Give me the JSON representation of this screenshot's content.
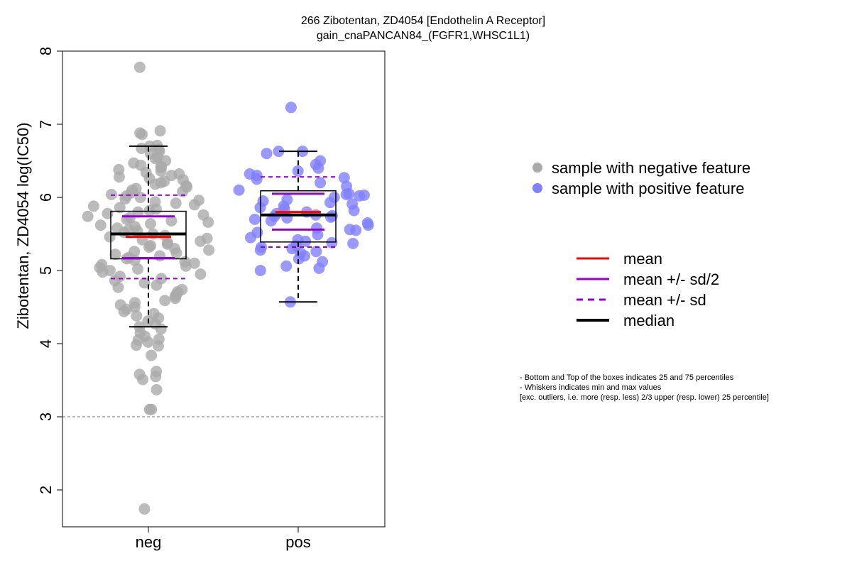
{
  "chart_data": {
    "type": "box",
    "title": "266 Zibotentan, ZD4054 [Endothelin A Receptor]",
    "subtitle": "gain_cnaPANCAN84_(FGFR1,WHSC1L1)",
    "ylabel": "Zibotentan, ZD4054 log(IC50)",
    "xlabel": "",
    "categories": [
      "neg",
      "pos"
    ],
    "ylim": [
      1.5,
      8.0
    ],
    "yticks": [
      "2",
      "3",
      "4",
      "5",
      "6",
      "7",
      "8"
    ],
    "reference_line": 3.0,
    "colors": {
      "neg": "#aaaaaa",
      "pos": "#8080ff",
      "mean": "#ff0000",
      "sd": "#9400d3",
      "median": "#000000"
    },
    "groups": [
      {
        "name": "neg",
        "q1": 5.16,
        "median": 5.5,
        "q3": 5.81,
        "whisker_low": 4.23,
        "whisker_high": 6.7,
        "mean": 5.46,
        "mean_minus_half_sd": 5.17,
        "mean_plus_half_sd": 5.74,
        "mean_minus_sd": 4.89,
        "mean_plus_sd": 6.03,
        "points": [
          7.78,
          6.91,
          6.86,
          6.88,
          6.71,
          6.7,
          6.67,
          6.66,
          6.63,
          6.6,
          6.55,
          6.53,
          6.5,
          6.47,
          6.44,
          6.42,
          6.41,
          6.38,
          6.36,
          6.34,
          6.32,
          6.3,
          6.28,
          6.26,
          6.24,
          6.22,
          6.2,
          6.18,
          6.16,
          6.14,
          6.12,
          6.1,
          6.08,
          6.06,
          6.04,
          6.02,
          6.0,
          5.98,
          5.96,
          5.94,
          5.92,
          5.9,
          5.88,
          5.86,
          5.84,
          5.82,
          5.8,
          5.78,
          5.76,
          5.74,
          5.72,
          5.7,
          5.68,
          5.66,
          5.64,
          5.62,
          5.6,
          5.58,
          5.56,
          5.54,
          5.52,
          5.5,
          5.48,
          5.46,
          5.44,
          5.42,
          5.4,
          5.38,
          5.36,
          5.34,
          5.32,
          5.3,
          5.28,
          5.26,
          5.24,
          5.22,
          5.2,
          5.18,
          5.16,
          5.14,
          5.12,
          5.1,
          5.08,
          5.06,
          5.04,
          5.02,
          5.0,
          4.98,
          4.95,
          4.92,
          4.89,
          4.86,
          4.83,
          4.8,
          4.77,
          4.74,
          4.71,
          4.68,
          4.65,
          4.62,
          4.59,
          4.56,
          4.53,
          4.5,
          4.47,
          4.44,
          4.41,
          4.38,
          4.35,
          4.31,
          4.27,
          4.23,
          4.2,
          4.15,
          4.1,
          4.06,
          4.05,
          4.02,
          3.98,
          3.97,
          3.84,
          3.62,
          3.58,
          3.55,
          3.51,
          3.37,
          3.1,
          3.1,
          1.74
        ]
      },
      {
        "name": "pos",
        "q1": 5.39,
        "median": 5.76,
        "q3": 6.09,
        "whisker_low": 4.57,
        "whisker_high": 6.63,
        "mean": 5.8,
        "mean_minus_half_sd": 5.56,
        "mean_plus_half_sd": 6.05,
        "mean_minus_sd": 5.32,
        "mean_plus_sd": 6.28,
        "points": [
          7.23,
          6.63,
          6.63,
          6.6,
          6.5,
          6.45,
          6.4,
          6.36,
          6.32,
          6.3,
          6.27,
          6.25,
          6.2,
          6.15,
          6.1,
          6.05,
          6.04,
          6.03,
          6.02,
          6.0,
          5.97,
          5.95,
          5.93,
          5.91,
          5.88,
          5.86,
          5.84,
          5.82,
          5.8,
          5.78,
          5.76,
          5.75,
          5.74,
          5.73,
          5.72,
          5.7,
          5.68,
          5.65,
          5.62,
          5.58,
          5.56,
          5.55,
          5.52,
          5.49,
          5.45,
          5.42,
          5.4,
          5.38,
          5.37,
          5.34,
          5.32,
          5.3,
          5.28,
          5.26,
          5.24,
          5.2,
          5.16,
          5.12,
          5.06,
          5.03,
          5.0,
          4.57
        ]
      }
    ]
  },
  "legend_points": [
    {
      "label": "sample with negative feature",
      "color": "#aaaaaa"
    },
    {
      "label": "sample with positive feature",
      "color": "#8080ff"
    }
  ],
  "legend_lines": [
    {
      "label": "mean",
      "color": "#ff0000",
      "style": "solid",
      "weight": "normal"
    },
    {
      "label": "mean +/- sd/2",
      "color": "#9400d3",
      "style": "solid",
      "weight": "normal"
    },
    {
      "label": "mean +/- sd",
      "color": "#9400d3",
      "style": "dashed",
      "weight": "normal"
    },
    {
      "label": "median",
      "color": "#000000",
      "style": "solid",
      "weight": "bold"
    }
  ],
  "notes": [
    "- Bottom and Top of the boxes indicates 25 and 75 percentiles",
    "- Whiskers indicates min and max values",
    "[exc. outliers, i.e. more (resp. less) 2/3 upper (resp. lower) 25 percentile]"
  ]
}
